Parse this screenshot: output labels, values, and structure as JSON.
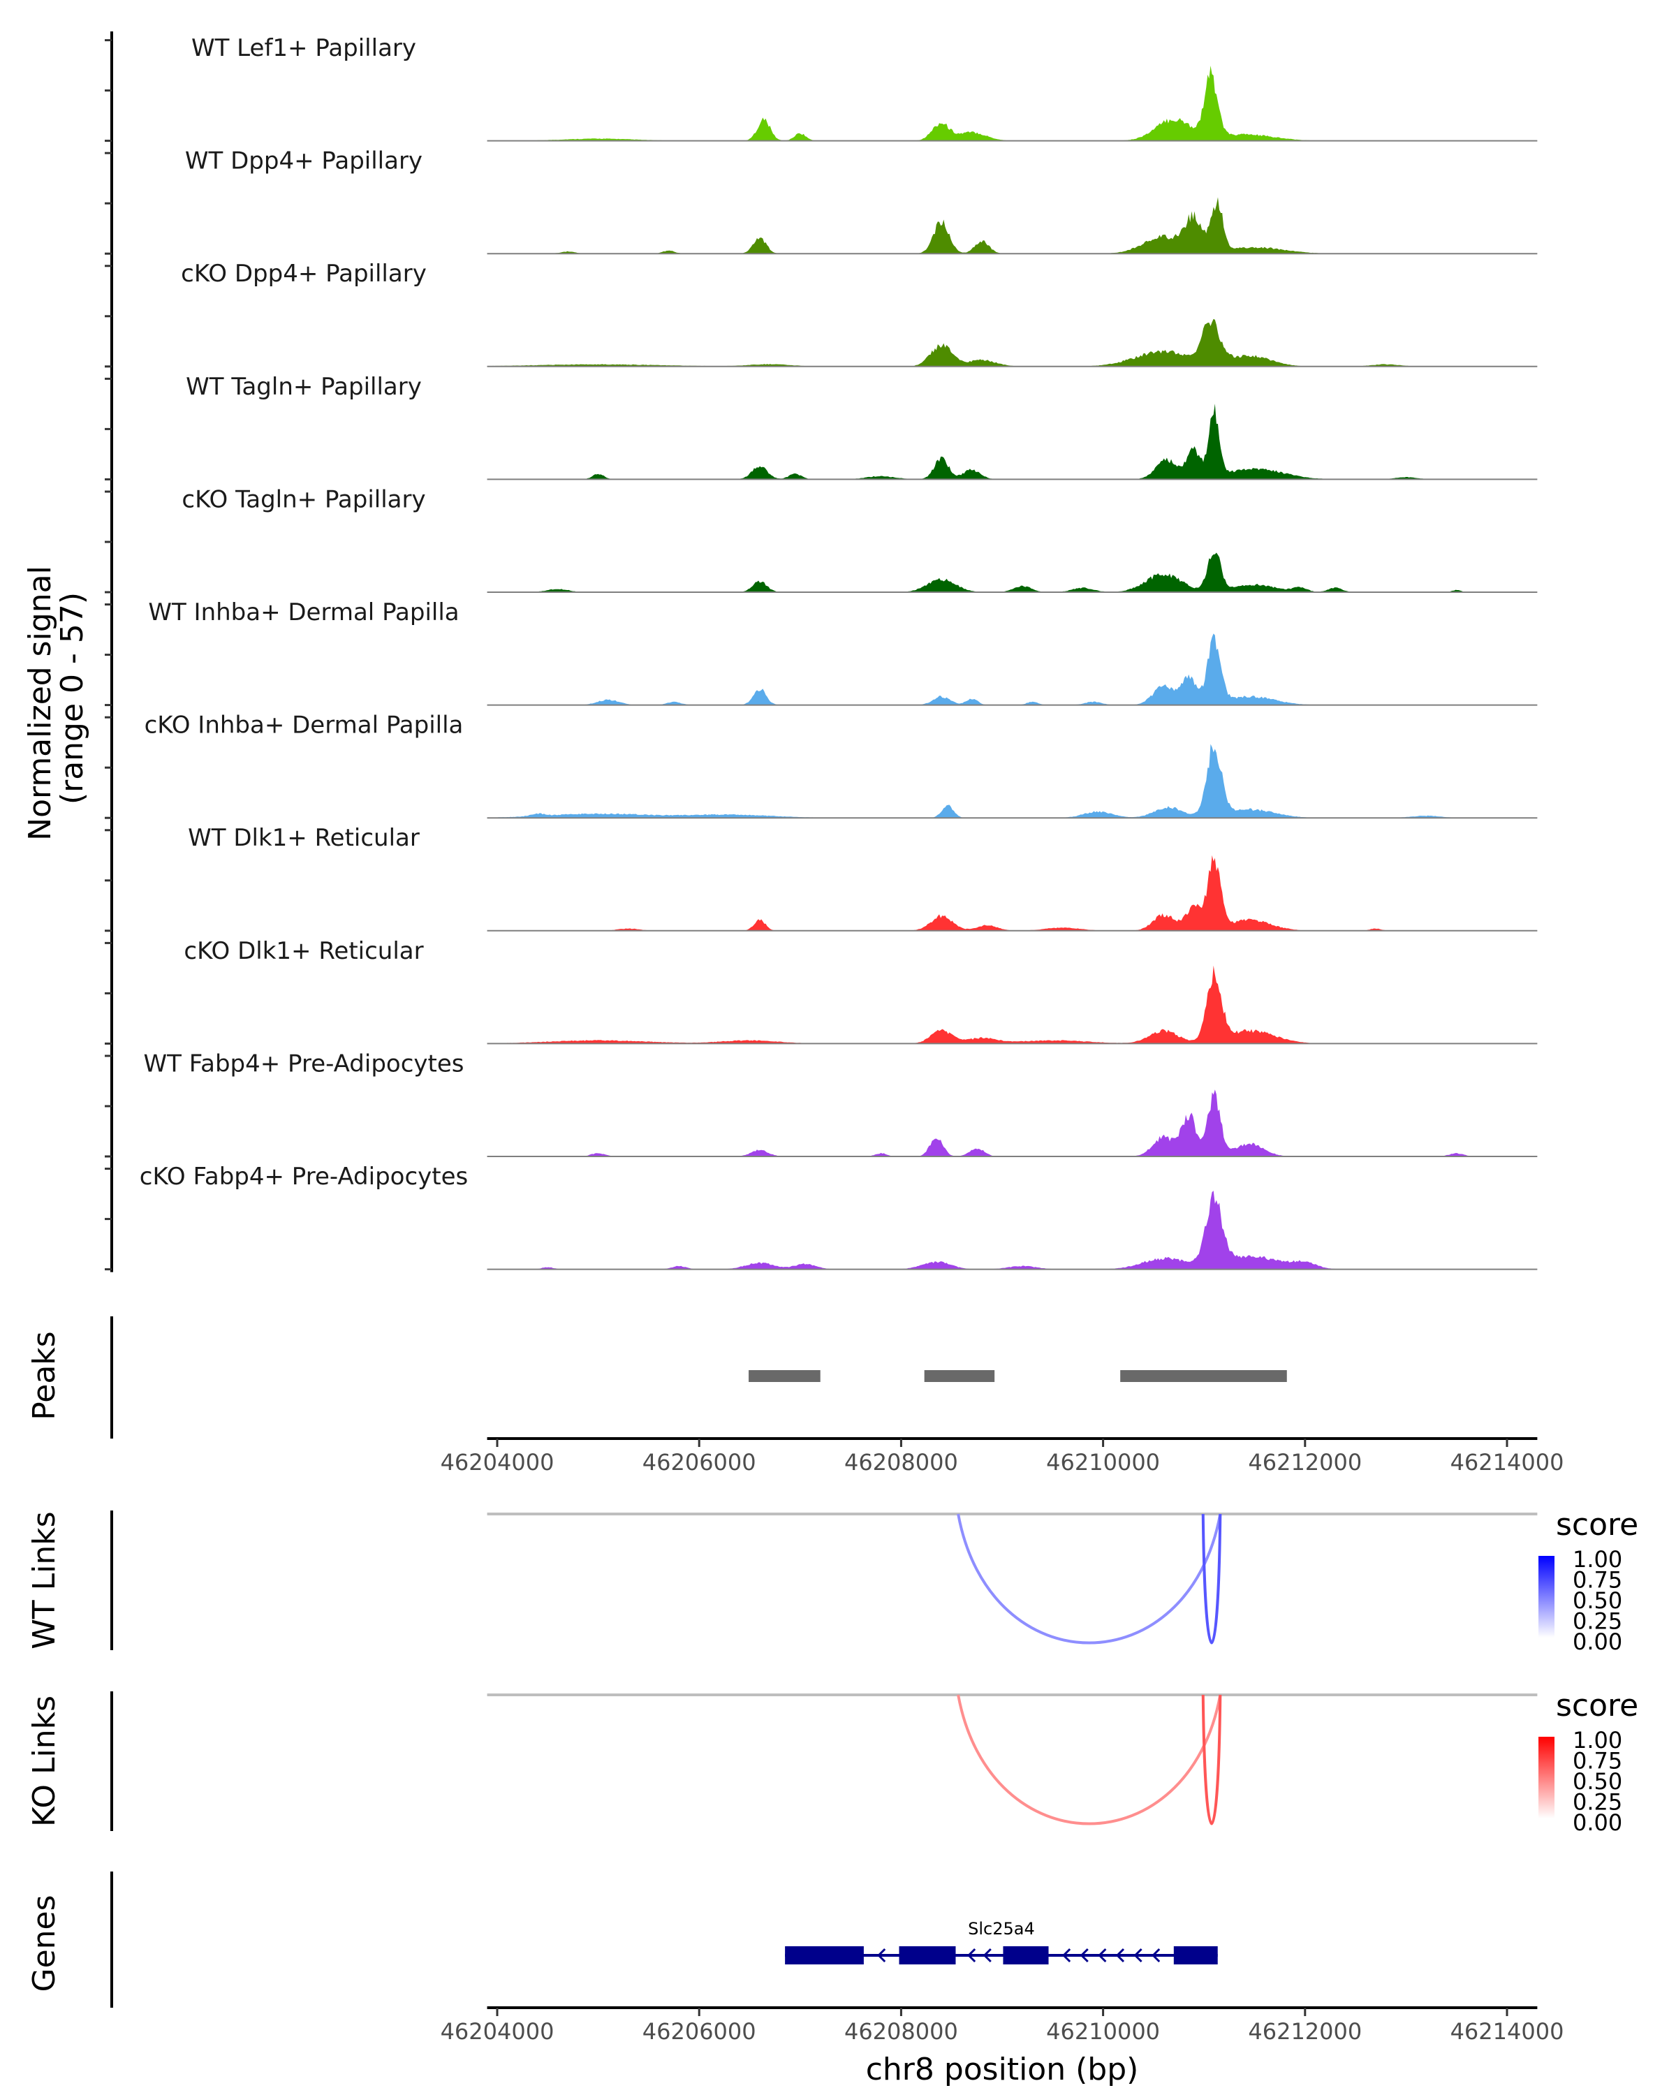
{
  "chart_data": {
    "type": "area",
    "title": "",
    "region": {
      "chrom": "chr8",
      "start": 46203900,
      "end": 46214300
    },
    "ylabel": "Normalized signal\n(range 0 - 57)",
    "ylabel_lines": [
      "Normalized signal",
      "(range 0 - 57)"
    ],
    "y_range": [
      0,
      57
    ],
    "xlabel": "chr8 position (bp)",
    "x_ticks": [
      46204000,
      46206000,
      46208000,
      46210000,
      46212000,
      46214000
    ],
    "x_tick_labels": [
      "46204000",
      "46206000",
      "46208000",
      "46210000",
      "46212000",
      "46214000"
    ],
    "coverage_tracks": [
      {
        "name": "WT Lef1+ Papillary",
        "color": "#66cc00",
        "peaks": [
          [
            46206640,
            0.2,
            90
          ],
          [
            46207000,
            0.07,
            80
          ],
          [
            46208390,
            0.16,
            120
          ],
          [
            46208700,
            0.08,
            200
          ],
          [
            46210700,
            0.2,
            250
          ],
          [
            46211070,
            0.57,
            90
          ],
          [
            46211400,
            0.06,
            400
          ],
          [
            46205000,
            0.02,
            500
          ]
        ]
      },
      {
        "name": "WT Dpp4+ Papillary",
        "color": "#4e8c00",
        "peaks": [
          [
            46206600,
            0.15,
            90
          ],
          [
            46208400,
            0.3,
            110
          ],
          [
            46208800,
            0.12,
            100
          ],
          [
            46210600,
            0.16,
            280
          ],
          [
            46210900,
            0.3,
            120
          ],
          [
            46211130,
            0.45,
            80
          ],
          [
            46211500,
            0.06,
            400
          ],
          [
            46205700,
            0.03,
            80
          ],
          [
            46204700,
            0.02,
            100
          ]
        ]
      },
      {
        "name": "cKO Dpp4+ Papillary",
        "color": "#4e8c00",
        "peaks": [
          [
            46208400,
            0.2,
            150
          ],
          [
            46208800,
            0.06,
            200
          ],
          [
            46210600,
            0.14,
            400
          ],
          [
            46211070,
            0.38,
            120
          ],
          [
            46211450,
            0.1,
            300
          ],
          [
            46205000,
            0.02,
            900
          ],
          [
            46206700,
            0.02,
            300
          ],
          [
            46212800,
            0.02,
            200
          ]
        ]
      },
      {
        "name": "WT Tagln+ Papillary",
        "color": "#006400",
        "peaks": [
          [
            46206600,
            0.12,
            110
          ],
          [
            46208400,
            0.2,
            100
          ],
          [
            46208700,
            0.09,
            120
          ],
          [
            46210630,
            0.18,
            150
          ],
          [
            46210900,
            0.26,
            100
          ],
          [
            46211100,
            0.59,
            70
          ],
          [
            46211500,
            0.1,
            400
          ],
          [
            46205000,
            0.05,
            80
          ],
          [
            46206950,
            0.05,
            90
          ],
          [
            46207800,
            0.03,
            200
          ],
          [
            46213000,
            0.02,
            150
          ]
        ]
      },
      {
        "name": "cKO Tagln+ Papillary",
        "color": "#006400",
        "peaks": [
          [
            46206600,
            0.1,
            100
          ],
          [
            46208400,
            0.12,
            200
          ],
          [
            46209200,
            0.06,
            120
          ],
          [
            46210600,
            0.17,
            250
          ],
          [
            46211100,
            0.38,
            90
          ],
          [
            46211500,
            0.07,
            300
          ],
          [
            46211950,
            0.04,
            100
          ],
          [
            46212300,
            0.04,
            100
          ],
          [
            46204600,
            0.03,
            150
          ],
          [
            46209800,
            0.04,
            150
          ],
          [
            46213500,
            0.02,
            60
          ]
        ]
      },
      {
        "name": "WT Inhba+ Dermal Papilla",
        "color": "#5aabeb",
        "peaks": [
          [
            46206600,
            0.15,
            90
          ],
          [
            46208400,
            0.08,
            120
          ],
          [
            46208700,
            0.06,
            80
          ],
          [
            46210600,
            0.17,
            150
          ],
          [
            46210850,
            0.25,
            110
          ],
          [
            46211100,
            0.58,
            90
          ],
          [
            46211450,
            0.08,
            350
          ],
          [
            46205100,
            0.05,
            150
          ],
          [
            46205750,
            0.03,
            100
          ],
          [
            46209900,
            0.03,
            120
          ],
          [
            46209300,
            0.03,
            80
          ]
        ]
      },
      {
        "name": "cKO Inhba+ Dermal Papilla",
        "color": "#5aabeb",
        "peaks": [
          [
            46208460,
            0.12,
            80
          ],
          [
            46210650,
            0.1,
            200
          ],
          [
            46211100,
            0.67,
            100
          ],
          [
            46211450,
            0.08,
            350
          ],
          [
            46209950,
            0.06,
            200
          ],
          [
            46205000,
            0.04,
            700
          ],
          [
            46206300,
            0.03,
            600
          ],
          [
            46204400,
            0.02,
            100
          ],
          [
            46213200,
            0.02,
            200
          ]
        ]
      },
      {
        "name": "WT Dlk1+ Reticular",
        "color": "#ff3333",
        "peaks": [
          [
            46206600,
            0.1,
            80
          ],
          [
            46208400,
            0.14,
            150
          ],
          [
            46208850,
            0.05,
            150
          ],
          [
            46210600,
            0.15,
            150
          ],
          [
            46210900,
            0.21,
            120
          ],
          [
            46211100,
            0.62,
            90
          ],
          [
            46211450,
            0.1,
            300
          ],
          [
            46205300,
            0.02,
            150
          ],
          [
            46209600,
            0.03,
            250
          ],
          [
            46212700,
            0.02,
            80
          ]
        ]
      },
      {
        "name": "cKO Dlk1+ Reticular",
        "color": "#ff3333",
        "peaks": [
          [
            46208400,
            0.12,
            150
          ],
          [
            46208800,
            0.05,
            200
          ],
          [
            46210600,
            0.12,
            200
          ],
          [
            46211100,
            0.62,
            100
          ],
          [
            46211450,
            0.12,
            350
          ],
          [
            46205000,
            0.03,
            700
          ],
          [
            46206500,
            0.03,
            400
          ],
          [
            46209500,
            0.03,
            500
          ]
        ]
      },
      {
        "name": "WT Fabp4+ Pre-Adipocytes",
        "color": "#a142ea",
        "peaks": [
          [
            46208350,
            0.18,
            90
          ],
          [
            46208750,
            0.08,
            100
          ],
          [
            46206600,
            0.06,
            120
          ],
          [
            46210600,
            0.18,
            150
          ],
          [
            46210850,
            0.38,
            100
          ],
          [
            46211100,
            0.55,
            90
          ],
          [
            46211450,
            0.12,
            200
          ],
          [
            46205000,
            0.03,
            100
          ],
          [
            46207800,
            0.03,
            80
          ],
          [
            46213500,
            0.03,
            100
          ]
        ]
      },
      {
        "name": "cKO Fabp4+ Pre-Adipocytes",
        "color": "#a142ea",
        "peaks": [
          [
            46208350,
            0.07,
            200
          ],
          [
            46210600,
            0.1,
            300
          ],
          [
            46211100,
            0.62,
            110
          ],
          [
            46211450,
            0.12,
            450
          ],
          [
            46206600,
            0.06,
            200
          ],
          [
            46207050,
            0.05,
            150
          ],
          [
            46205800,
            0.03,
            100
          ],
          [
            46209200,
            0.03,
            200
          ],
          [
            46212000,
            0.05,
            150
          ],
          [
            46204500,
            0.02,
            80
          ]
        ]
      }
    ],
    "peaks_track": {
      "label": "Peaks",
      "color": "#696969",
      "regions": [
        [
          46206490,
          46207200
        ],
        [
          46208230,
          46208925
        ],
        [
          46210170,
          46211820
        ]
      ]
    },
    "links_tracks": [
      {
        "label": "WT Links",
        "legend_title": "score",
        "color_low": "#ffffff",
        "color_high": "#0000ff",
        "links": [
          {
            "start": 46208565,
            "end": 46211160,
            "score": 0.35
          },
          {
            "start": 46210990,
            "end": 46211160,
            "score": 0.75
          }
        ]
      },
      {
        "label": "KO Links",
        "legend_title": "score",
        "color_low": "#ffffff",
        "color_high": "#ff0000",
        "links": [
          {
            "start": 46208565,
            "end": 46211160,
            "score": 0.35
          },
          {
            "start": 46210990,
            "end": 46211160,
            "score": 0.75
          }
        ]
      }
    ],
    "legend_ticks": [
      "1.00",
      "0.75",
      "0.50",
      "0.25",
      "0.00"
    ],
    "genes_track": {
      "label": "Genes",
      "color": "#00008b",
      "genes": [
        {
          "name": "Slc25a4",
          "strand": "-",
          "start": 46206850,
          "end": 46211135,
          "exons": [
            [
              46206850,
              46207630
            ],
            [
              46207980,
              46208540
            ],
            [
              46209010,
              46209460
            ],
            [
              46210700,
              46211135
            ]
          ]
        }
      ]
    }
  }
}
